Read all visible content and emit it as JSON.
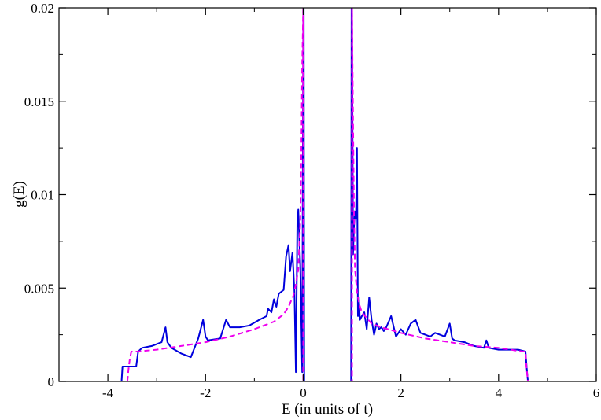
{
  "chart_data": {
    "type": "line",
    "xlabel": "E (in units of t)",
    "ylabel": "g(E)",
    "xlim": [
      -5,
      6
    ],
    "ylim": [
      0,
      0.02
    ],
    "x_ticks": [
      -4,
      -2,
      0,
      2,
      4,
      6
    ],
    "x_tick_labels": [
      "-4",
      "-2",
      "0",
      "2",
      "4",
      "6"
    ],
    "y_ticks": [
      0,
      0.005,
      0.01,
      0.015,
      0.02
    ],
    "y_tick_labels": [
      "0",
      "0.005",
      "0.01",
      "0.015",
      "0.02"
    ],
    "grid": false,
    "series": [
      {
        "color": "#0000dd",
        "style": "solid",
        "x": [
          -4.5,
          -3.72,
          -3.7,
          -3.55,
          -3.52,
          -3.42,
          -3.38,
          -3.3,
          -3.1,
          -2.9,
          -2.82,
          -2.78,
          -2.7,
          -2.5,
          -2.3,
          -2.15,
          -2.05,
          -2.0,
          -1.95,
          -1.7,
          -1.58,
          -1.5,
          -1.3,
          -1.1,
          -0.9,
          -0.75,
          -0.72,
          -0.65,
          -0.6,
          -0.55,
          -0.5,
          -0.45,
          -0.4,
          -0.35,
          -0.3,
          -0.27,
          -0.22,
          -0.18,
          -0.15,
          -0.12,
          -0.1,
          -0.06,
          -0.02,
          0.0,
          0.01,
          0.02,
          0.03,
          0.98,
          0.99,
          1.0,
          1.02,
          1.04,
          1.06,
          1.08,
          1.1,
          1.12,
          1.14,
          1.16,
          1.2,
          1.25,
          1.3,
          1.35,
          1.4,
          1.45,
          1.5,
          1.55,
          1.6,
          1.65,
          1.7,
          1.8,
          1.9,
          2.0,
          2.1,
          2.2,
          2.3,
          2.4,
          2.5,
          2.6,
          2.7,
          2.8,
          2.9,
          3.0,
          3.05,
          3.1,
          3.3,
          3.5,
          3.7,
          3.75,
          3.8,
          4.0,
          4.2,
          4.4,
          4.55,
          4.58,
          4.6,
          4.7
        ],
        "y": [
          0,
          0,
          0.0008,
          0.0008,
          0.0008,
          0.0008,
          0.0016,
          0.0018,
          0.0019,
          0.0021,
          0.0029,
          0.0021,
          0.0018,
          0.0015,
          0.0013,
          0.0023,
          0.0033,
          0.0024,
          0.0022,
          0.0023,
          0.0033,
          0.0029,
          0.0029,
          0.003,
          0.0033,
          0.0035,
          0.0039,
          0.0037,
          0.0044,
          0.004,
          0.0047,
          0.0048,
          0.0049,
          0.0067,
          0.0073,
          0.0059,
          0.0069,
          0.0048,
          0.0005,
          0.0085,
          0.0092,
          0.0062,
          0.0005,
          0.02,
          0.02,
          0.0,
          0,
          0,
          0.02,
          0.02,
          0.0068,
          0.0083,
          0.0091,
          0.0087,
          0.0125,
          0.0035,
          0.0045,
          0.0033,
          0.0035,
          0.0037,
          0.0028,
          0.0045,
          0.0033,
          0.0025,
          0.0031,
          0.0028,
          0.0029,
          0.0027,
          0.0029,
          0.0035,
          0.0024,
          0.0028,
          0.0025,
          0.0031,
          0.0033,
          0.0026,
          0.0025,
          0.0024,
          0.0026,
          0.0025,
          0.0024,
          0.0031,
          0.0023,
          0.0022,
          0.0021,
          0.0019,
          0.0018,
          0.0022,
          0.0018,
          0.0017,
          0.0017,
          0.0017,
          0.0016,
          0.0006,
          0,
          0
        ]
      },
      {
        "color": "#ee00ee",
        "style": "dashed",
        "x": [
          -3.6,
          -3.58,
          -3.55,
          -3.52,
          -3.4,
          -3.0,
          -2.5,
          -2.0,
          -1.5,
          -1.0,
          -0.8,
          -0.6,
          -0.4,
          -0.3,
          -0.2,
          -0.15,
          -0.1,
          -0.06,
          -0.04,
          -0.02,
          0.0,
          0.0,
          1.0,
          1.0,
          1.02,
          1.04,
          1.06,
          1.1,
          1.15,
          1.2,
          1.3,
          1.4,
          1.6,
          2.0,
          2.5,
          3.0,
          3.5,
          4.0,
          4.5,
          4.55,
          4.57,
          4.6
        ],
        "y": [
          0,
          0.0006,
          0.0012,
          0.0016,
          0.0016,
          0.0017,
          0.0019,
          0.0021,
          0.0024,
          0.0028,
          0.003,
          0.0032,
          0.0036,
          0.004,
          0.0046,
          0.0052,
          0.006,
          0.0085,
          0.012,
          0.017,
          0.02,
          0,
          0,
          0.02,
          0.014,
          0.009,
          0.006,
          0.0048,
          0.0041,
          0.0037,
          0.0034,
          0.0031,
          0.0029,
          0.0026,
          0.0023,
          0.0021,
          0.0019,
          0.0018,
          0.0016,
          0.0016,
          0.0008,
          0
        ]
      }
    ]
  }
}
